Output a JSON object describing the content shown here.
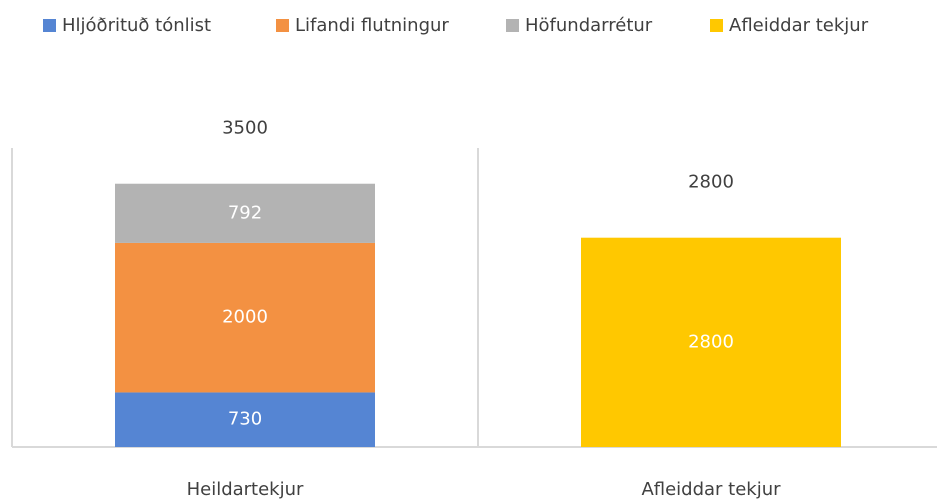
{
  "chart_data": {
    "type": "stacked_bar",
    "categories": [
      "Heildartekjur",
      "Afleiddar tekjur"
    ],
    "series": [
      {
        "name": "Hljóðrituð tónlist",
        "color": "#5585d3",
        "values": [
          730,
          null
        ]
      },
      {
        "name": "Lifandi flutningur",
        "color": "#f39142",
        "values": [
          2000,
          null
        ]
      },
      {
        "name": "Höfundarrétur",
        "color": "#b3b3b3",
        "values": [
          792,
          null
        ]
      },
      {
        "name": "Afleiddar tekjur",
        "color": "#ffc800",
        "values": [
          null,
          2800
        ]
      }
    ],
    "totals": [
      3500,
      2800
    ],
    "ylim": [
      0,
      4000
    ],
    "legend": "top"
  }
}
